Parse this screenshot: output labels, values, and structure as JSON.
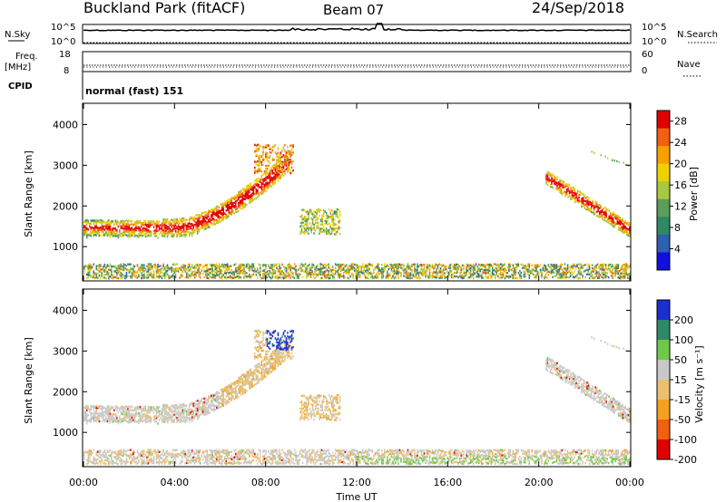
{
  "header": {
    "station": "Buckland Park (fitACF)",
    "beam": "Beam 07",
    "date": "24/Sep/2018"
  },
  "top_panels": {
    "nsky_label": "N.Sky",
    "nsearch_label": "N.Search",
    "sky_top_tick": "10^5",
    "sky_bottom_tick": "10^0",
    "freq_label": "Freq.",
    "freq_unit": "[MHz]",
    "freq_ticks": [
      "18",
      "8"
    ],
    "nave_label": "Nave",
    "nave_ticks": [
      "60",
      "0"
    ],
    "cpid_label": "CPID",
    "cpid_text": "normal (fast) 151"
  },
  "chart_data": [
    {
      "type": "heatmap",
      "name": "power",
      "ylabel": "Slant Range [km]",
      "xlabel": "Time UT",
      "x_ticks": [
        "00:00",
        "04:00",
        "08:00",
        "12:00",
        "16:00",
        "20:00",
        "00:00"
      ],
      "x_range_hours": [
        0,
        24
      ],
      "y_ticks": [
        1000,
        2000,
        3000,
        4000
      ],
      "y_range_km": [
        180,
        4500
      ],
      "colorbar": {
        "label": "Power [dB]",
        "ticks": [
          "4",
          "8",
          "12",
          "16",
          "20",
          "24",
          "28"
        ],
        "range": [
          0,
          30
        ],
        "colors": [
          "#1010e0",
          "#2f5fb0",
          "#2e8a66",
          "#5a9e58",
          "#a8c840",
          "#f0d000",
          "#f7a000",
          "#f06010",
          "#e00000"
        ]
      },
      "features": [
        {
          "desc": "ground scatter band",
          "t_start": 0,
          "t_end": 24,
          "range_km": [
            250,
            520
          ]
        },
        {
          "desc": "morning echo rising",
          "t_start": 0,
          "t_end": 9.0,
          "range_km_start": 1450,
          "range_km_end": 3100
        },
        {
          "desc": "patch",
          "t_start": 9.5,
          "t_end": 11.2,
          "range_km": [
            1300,
            1900
          ]
        },
        {
          "desc": "evening echo falling",
          "t_start": 20.3,
          "t_end": 24,
          "range_km_start": 2700,
          "range_km_end": 1400
        }
      ]
    },
    {
      "type": "heatmap",
      "name": "velocity",
      "ylabel": "Slant Range [km]",
      "xlabel": "Time UT",
      "x_ticks": [
        "00:00",
        "04:00",
        "08:00",
        "12:00",
        "16:00",
        "20:00",
        "00:00"
      ],
      "x_range_hours": [
        0,
        24
      ],
      "y_ticks": [
        1000,
        2000,
        3000,
        4000
      ],
      "y_range_km": [
        180,
        4500
      ],
      "colorbar": {
        "label": "Velocity [m s⁻¹]",
        "ticks": [
          "200",
          "100",
          "50",
          "15",
          "-15",
          "-50",
          "-100",
          "-200"
        ],
        "range": [
          -250,
          250
        ],
        "colors": [
          "#1a2fd0",
          "#2e8a66",
          "#6fc84a",
          "#c8c8c8",
          "#e8c070",
          "#f5a020",
          "#f06010",
          "#e00000"
        ]
      }
    }
  ]
}
